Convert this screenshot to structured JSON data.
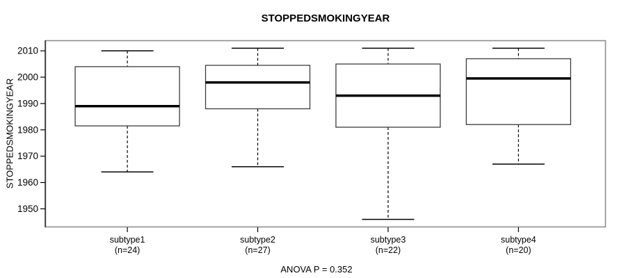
{
  "chart_data": {
    "type": "boxplot",
    "title": "STOPPEDSMOKINGYEAR",
    "ylabel": "STOPPEDSMOKINGYEAR",
    "xlabel": "",
    "footer": "ANOVA P = 0.352",
    "ylim": [
      1943,
      2014
    ],
    "yticks": [
      1950,
      1960,
      1970,
      1980,
      1990,
      2000,
      2010
    ],
    "grid": false,
    "legend": "none",
    "categories": [
      "subtype1",
      "subtype2",
      "subtype3",
      "subtype4"
    ],
    "category_sublabels": [
      "(n=24)",
      "(n=27)",
      "(n=22)",
      "(n=20)"
    ],
    "series": [
      {
        "name": "subtype1",
        "n": 24,
        "whisker_low": 1964,
        "q1": 1981.5,
        "median": 1989,
        "q3": 2004,
        "whisker_high": 2010
      },
      {
        "name": "subtype2",
        "n": 27,
        "whisker_low": 1966,
        "q1": 1988,
        "median": 1998,
        "q3": 2004.5,
        "whisker_high": 2011
      },
      {
        "name": "subtype3",
        "n": 22,
        "whisker_low": 1946,
        "q1": 1981,
        "median": 1993,
        "q3": 2005,
        "whisker_high": 2011
      },
      {
        "name": "subtype4",
        "n": 20,
        "whisker_low": 1967,
        "q1": 1982,
        "median": 1999.5,
        "q3": 2007,
        "whisker_high": 2011
      }
    ],
    "colors": {
      "background": "#ffffff",
      "plot_border": "#8e8e8e",
      "box_border": "#3c3c3c",
      "median": "#000000",
      "whisker": "#000000",
      "text": "#000000"
    }
  }
}
